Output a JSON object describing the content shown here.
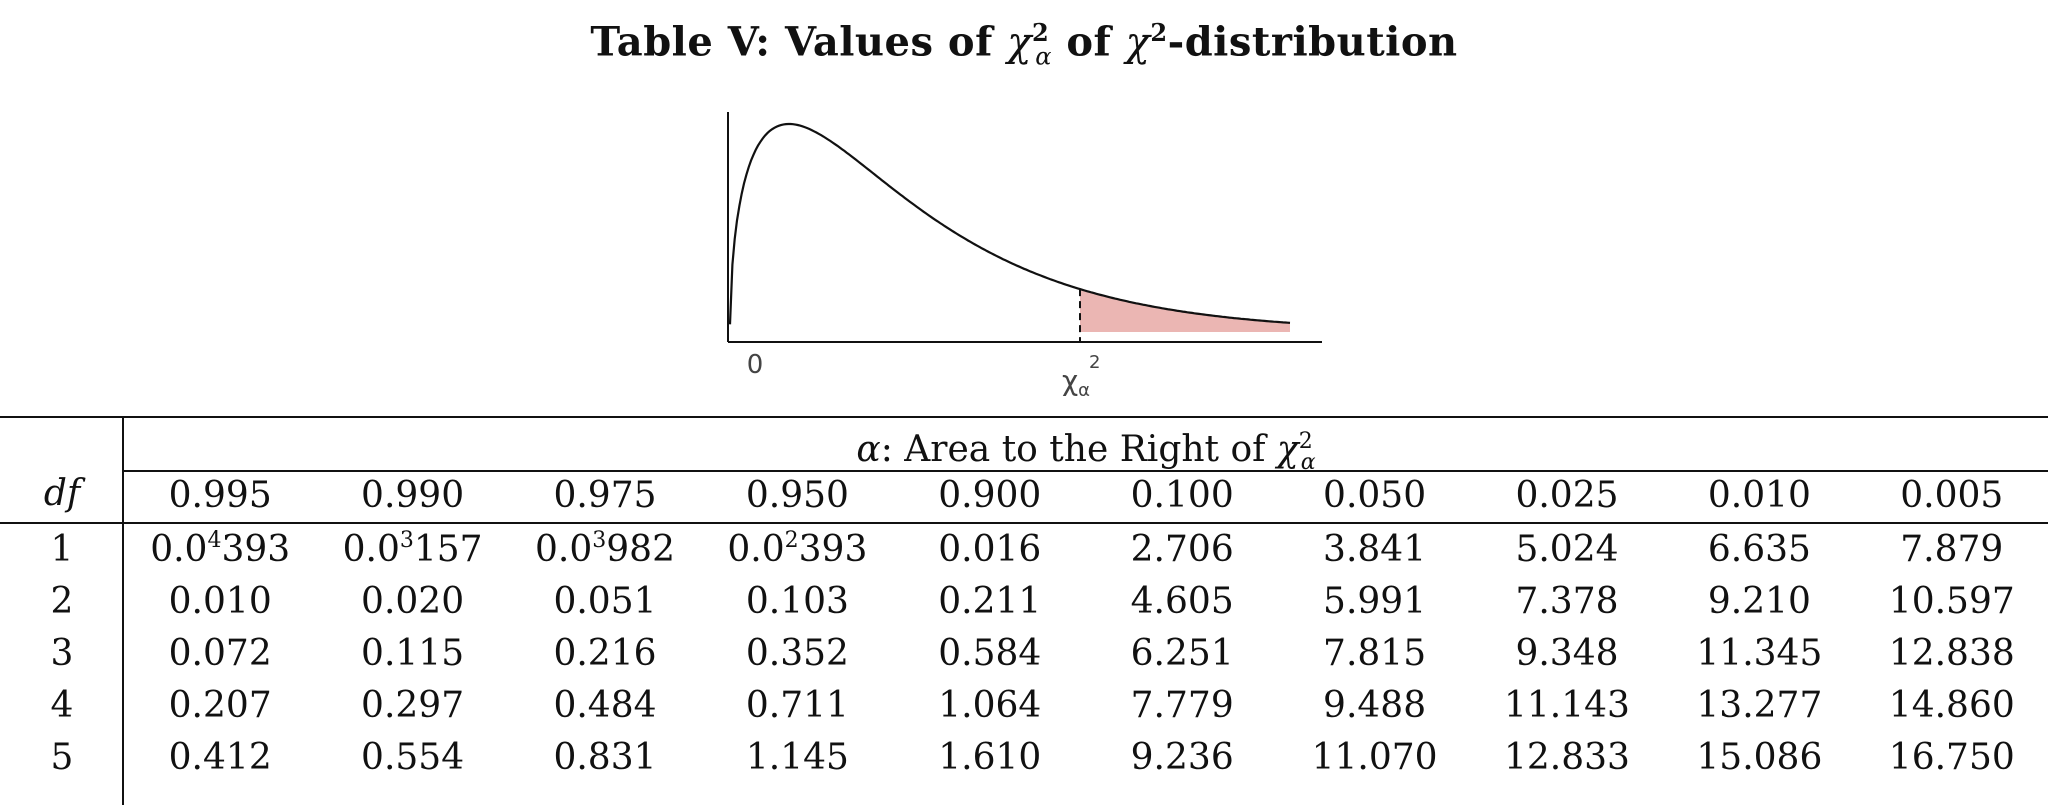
{
  "title": {
    "prefix": "Table V: Values of ",
    "chi": "χ",
    "alpha_sub": "α",
    "sq": "2",
    "mid": " of ",
    "suffix": "-distribution"
  },
  "figure": {
    "origin_label": "0",
    "critical_label_chi": "χ",
    "critical_label_sub": "α",
    "critical_label_sup": "2",
    "shade_color": "#EBB6B3",
    "curve_color": "#111111"
  },
  "table": {
    "header": {
      "alpha_symbol": "α",
      "text": ": Area to the Right of ",
      "chi": "χ",
      "sub": "α",
      "sup": "2"
    },
    "df_label": "df",
    "columns": [
      "0.995",
      "0.990",
      "0.975",
      "0.950",
      "0.900",
      "0.100",
      "0.050",
      "0.025",
      "0.010",
      "0.005"
    ],
    "rows": [
      {
        "df": "1",
        "cells": [
          {
            "base": "0.0",
            "exp": "4",
            "rest": "393"
          },
          {
            "base": "0.0",
            "exp": "3",
            "rest": "157"
          },
          {
            "base": "0.0",
            "exp": "3",
            "rest": "982"
          },
          {
            "base": "0.0",
            "exp": "2",
            "rest": "393"
          },
          {
            "base": "0.016"
          },
          {
            "base": "2.706"
          },
          {
            "base": "3.841"
          },
          {
            "base": "5.024"
          },
          {
            "base": "6.635"
          },
          {
            "base": "7.879"
          }
        ]
      },
      {
        "df": "2",
        "cells": [
          {
            "base": "0.010"
          },
          {
            "base": "0.020"
          },
          {
            "base": "0.051"
          },
          {
            "base": "0.103"
          },
          {
            "base": "0.211"
          },
          {
            "base": "4.605"
          },
          {
            "base": "5.991"
          },
          {
            "base": "7.378"
          },
          {
            "base": "9.210"
          },
          {
            "base": "10.597"
          }
        ]
      },
      {
        "df": "3",
        "cells": [
          {
            "base": "0.072"
          },
          {
            "base": "0.115"
          },
          {
            "base": "0.216"
          },
          {
            "base": "0.352"
          },
          {
            "base": "0.584"
          },
          {
            "base": "6.251"
          },
          {
            "base": "7.815"
          },
          {
            "base": "9.348"
          },
          {
            "base": "11.345"
          },
          {
            "base": "12.838"
          }
        ]
      },
      {
        "df": "4",
        "cells": [
          {
            "base": "0.207"
          },
          {
            "base": "0.297"
          },
          {
            "base": "0.484"
          },
          {
            "base": "0.711"
          },
          {
            "base": "1.064"
          },
          {
            "base": "7.779"
          },
          {
            "base": "9.488"
          },
          {
            "base": "11.143"
          },
          {
            "base": "13.277"
          },
          {
            "base": "14.860"
          }
        ]
      },
      {
        "df": "5",
        "cells": [
          {
            "base": "0.412"
          },
          {
            "base": "0.554"
          },
          {
            "base": "0.831"
          },
          {
            "base": "1.145"
          },
          {
            "base": "1.610"
          },
          {
            "base": "9.236"
          },
          {
            "base": "11.070"
          },
          {
            "base": "12.833"
          },
          {
            "base": "15.086"
          },
          {
            "base": "16.750"
          }
        ]
      }
    ]
  }
}
